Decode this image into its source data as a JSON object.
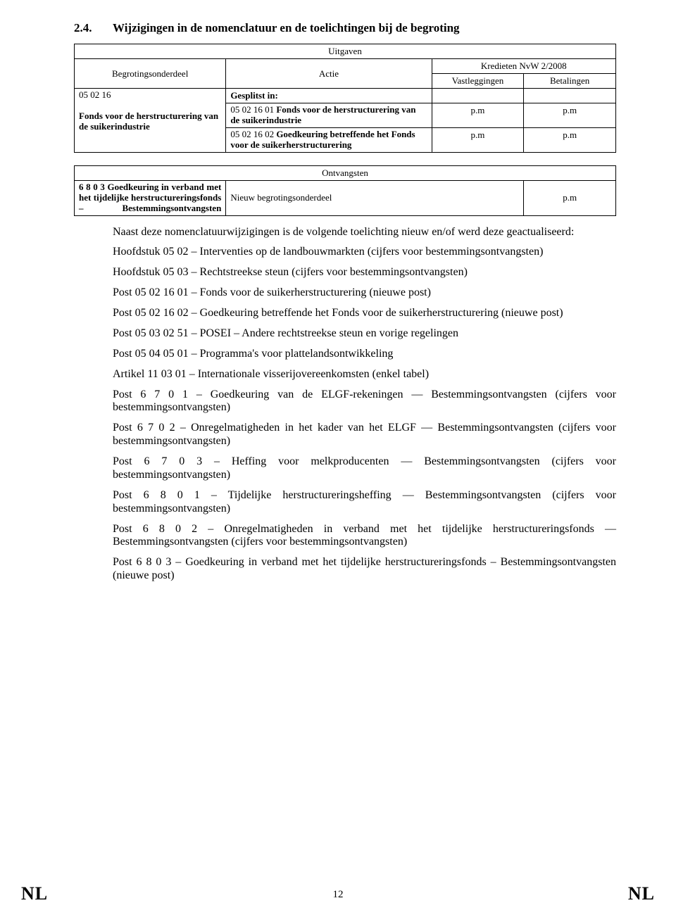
{
  "heading": {
    "number": "2.4.",
    "text": "Wijzigingen in de nomenclatuur en de toelichtingen bij de begroting"
  },
  "table1": {
    "caption_uitgaven": "Uitgaven",
    "hdr_begrotingsonderdeel": "Begrotingsonderdeel",
    "hdr_actie": "Actie",
    "hdr_kredieten": "Kredieten NvW 2/2008",
    "hdr_vastleggingen": "Vastleggingen",
    "hdr_betalingen": "Betalingen",
    "gesplitst": "Gesplitst in:",
    "row_left_code": "05 02 16",
    "row_left_text1": "Fonds voor de herstructurering van de suikerindustrie",
    "actie1_a": "05 02 16 01 ",
    "actie1_b": "Fonds voor de herstructurering van de suikerindustrie",
    "actie2_a": "05 02 16 02 ",
    "actie2_b": "Goedkeuring betreffende het Fonds voor de suikerherstructurering",
    "pm": "p.m"
  },
  "table2": {
    "caption_ontvangsten": "Ontvangsten",
    "row_left": "6 8 0 3 Goedkeuring in verband met het tijdelijke herstructureringsfonds – Bestemmingsontvangsten",
    "row_mid": "Nieuw begrotingsonderdeel",
    "pm": "p.m"
  },
  "para_intro": "Naast deze nomenclatuurwijzigingen is de volgende toelichting nieuw en/of werd deze geactualiseerd:",
  "paras": [
    "Hoofdstuk 05 02 – Interventies op de landbouwmarkten (cijfers voor bestemmingsontvangsten)",
    "Hoofdstuk 05 03 – Rechtstreekse steun (cijfers voor bestemmingsontvangsten)",
    "Post 05 02 16 01 – Fonds voor de suikerherstructurering (nieuwe post)",
    "Post 05 02 16 02 – Goedkeuring betreffende het Fonds voor de suikerherstructurering (nieuwe post)",
    "Post 05 03 02 51 – POSEI – Andere rechtstreekse steun en vorige regelingen",
    "Post 05 04 05 01 – Programma's voor plattelandsontwikkeling",
    "Artikel 11 03 01 – Internationale visserijovereenkomsten (enkel tabel)",
    "Post 6 7 0 1 – Goedkeuring van de ELGF-rekeningen — Bestemmingsontvangsten (cijfers voor bestemmingsontvangsten)",
    "Post 6 7 0 2 – Onregelmatigheden in het kader van het ELGF — Bestemmingsontvangsten (cijfers voor bestemmingsontvangsten)",
    "Post 6 7 0 3 – Heffing voor melkproducenten — Bestemmingsontvangsten (cijfers voor bestemmingsontvangsten)",
    "Post 6 8 0 1 – Tijdelijke herstructureringsheffing — Bestemmingsontvangsten (cijfers voor bestemmingsontvangsten)",
    "Post 6 8 0 2 – Onregelmatigheden in verband met het tijdelijke herstructureringsfonds — Bestemmingsontvangsten (cijfers voor bestemmingsontvangsten)",
    "Post 6 8 0 3 – Goedkeuring in verband met het tijdelijke herstructureringsfonds – Bestemmingsontvangsten (nieuwe post)"
  ],
  "footer": {
    "nl": "NL",
    "page": "12"
  }
}
